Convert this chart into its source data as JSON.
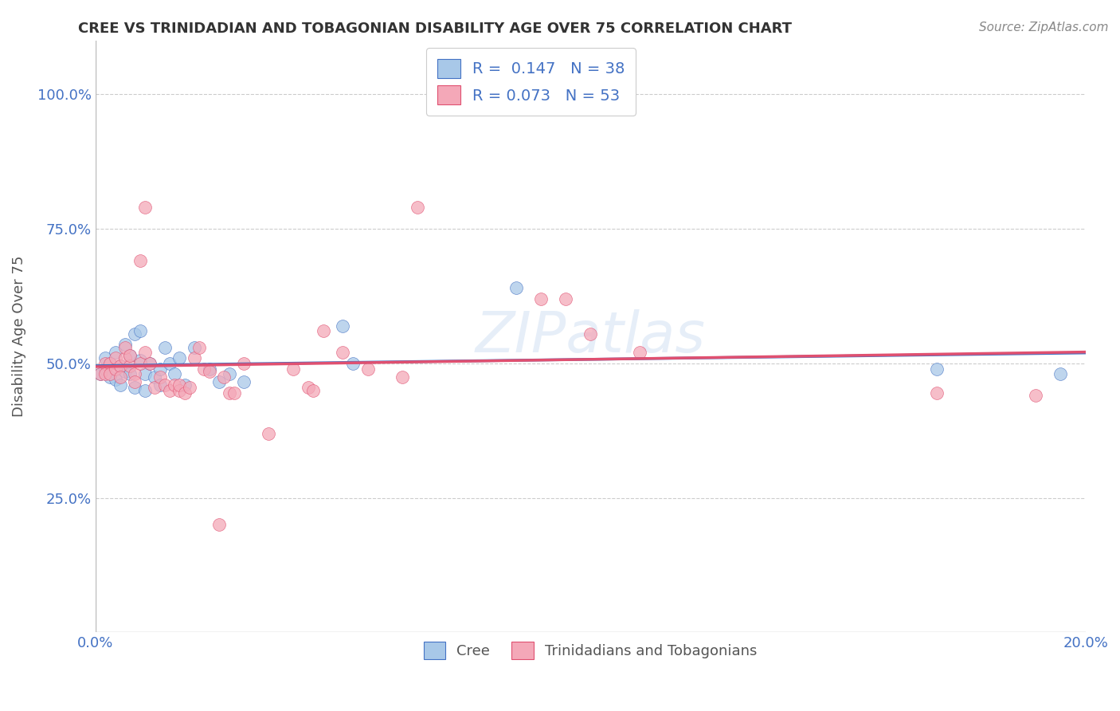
{
  "title": "CREE VS TRINIDADIAN AND TOBAGONIAN DISABILITY AGE OVER 75 CORRELATION CHART",
  "source": "Source: ZipAtlas.com",
  "ylabel": "Disability Age Over 75",
  "xlim": [
    0.0,
    0.2
  ],
  "ylim": [
    0.0,
    1.1
  ],
  "cree_color": "#a8c8e8",
  "trinidadian_color": "#f4a8b8",
  "cree_line_color": "#4472C4",
  "trinidadian_line_color": "#E05070",
  "background_color": "#ffffff",
  "grid_color": "#cccccc",
  "R_cree": 0.147,
  "N_cree": 38,
  "R_trinidadian": 0.073,
  "N_trinidadian": 53,
  "legend_label_cree": "Cree",
  "legend_label_trinidadian": "Trinidadians and Tobagonians",
  "cree_points": [
    [
      0.001,
      0.48
    ],
    [
      0.002,
      0.49
    ],
    [
      0.002,
      0.51
    ],
    [
      0.003,
      0.475
    ],
    [
      0.003,
      0.5
    ],
    [
      0.004,
      0.47
    ],
    [
      0.004,
      0.52
    ],
    [
      0.005,
      0.495
    ],
    [
      0.005,
      0.46
    ],
    [
      0.006,
      0.485
    ],
    [
      0.006,
      0.535
    ],
    [
      0.007,
      0.48
    ],
    [
      0.007,
      0.515
    ],
    [
      0.008,
      0.555
    ],
    [
      0.008,
      0.455
    ],
    [
      0.009,
      0.505
    ],
    [
      0.009,
      0.56
    ],
    [
      0.01,
      0.45
    ],
    [
      0.01,
      0.48
    ],
    [
      0.011,
      0.5
    ],
    [
      0.012,
      0.475
    ],
    [
      0.013,
      0.49
    ],
    [
      0.013,
      0.46
    ],
    [
      0.014,
      0.53
    ],
    [
      0.015,
      0.5
    ],
    [
      0.016,
      0.48
    ],
    [
      0.017,
      0.51
    ],
    [
      0.018,
      0.46
    ],
    [
      0.02,
      0.53
    ],
    [
      0.023,
      0.49
    ],
    [
      0.025,
      0.465
    ],
    [
      0.027,
      0.48
    ],
    [
      0.03,
      0.465
    ],
    [
      0.05,
      0.57
    ],
    [
      0.052,
      0.5
    ],
    [
      0.085,
      0.64
    ],
    [
      0.17,
      0.49
    ],
    [
      0.195,
      0.48
    ]
  ],
  "trinidadian_points": [
    [
      0.001,
      0.48
    ],
    [
      0.002,
      0.5
    ],
    [
      0.002,
      0.48
    ],
    [
      0.003,
      0.5
    ],
    [
      0.003,
      0.48
    ],
    [
      0.004,
      0.49
    ],
    [
      0.004,
      0.51
    ],
    [
      0.005,
      0.495
    ],
    [
      0.005,
      0.475
    ],
    [
      0.006,
      0.51
    ],
    [
      0.006,
      0.53
    ],
    [
      0.007,
      0.495
    ],
    [
      0.007,
      0.515
    ],
    [
      0.008,
      0.48
    ],
    [
      0.008,
      0.465
    ],
    [
      0.009,
      0.5
    ],
    [
      0.009,
      0.69
    ],
    [
      0.01,
      0.52
    ],
    [
      0.01,
      0.79
    ],
    [
      0.011,
      0.5
    ],
    [
      0.012,
      0.455
    ],
    [
      0.013,
      0.475
    ],
    [
      0.014,
      0.46
    ],
    [
      0.015,
      0.45
    ],
    [
      0.016,
      0.46
    ],
    [
      0.017,
      0.45
    ],
    [
      0.017,
      0.46
    ],
    [
      0.018,
      0.445
    ],
    [
      0.019,
      0.455
    ],
    [
      0.02,
      0.51
    ],
    [
      0.021,
      0.53
    ],
    [
      0.022,
      0.49
    ],
    [
      0.023,
      0.485
    ],
    [
      0.025,
      0.2
    ],
    [
      0.026,
      0.475
    ],
    [
      0.027,
      0.445
    ],
    [
      0.028,
      0.445
    ],
    [
      0.03,
      0.5
    ],
    [
      0.035,
      0.37
    ],
    [
      0.04,
      0.49
    ],
    [
      0.043,
      0.455
    ],
    [
      0.044,
      0.45
    ],
    [
      0.046,
      0.56
    ],
    [
      0.05,
      0.52
    ],
    [
      0.055,
      0.49
    ],
    [
      0.062,
      0.475
    ],
    [
      0.065,
      0.79
    ],
    [
      0.09,
      0.62
    ],
    [
      0.095,
      0.62
    ],
    [
      0.1,
      0.555
    ],
    [
      0.11,
      0.52
    ],
    [
      0.17,
      0.445
    ],
    [
      0.19,
      0.44
    ]
  ]
}
